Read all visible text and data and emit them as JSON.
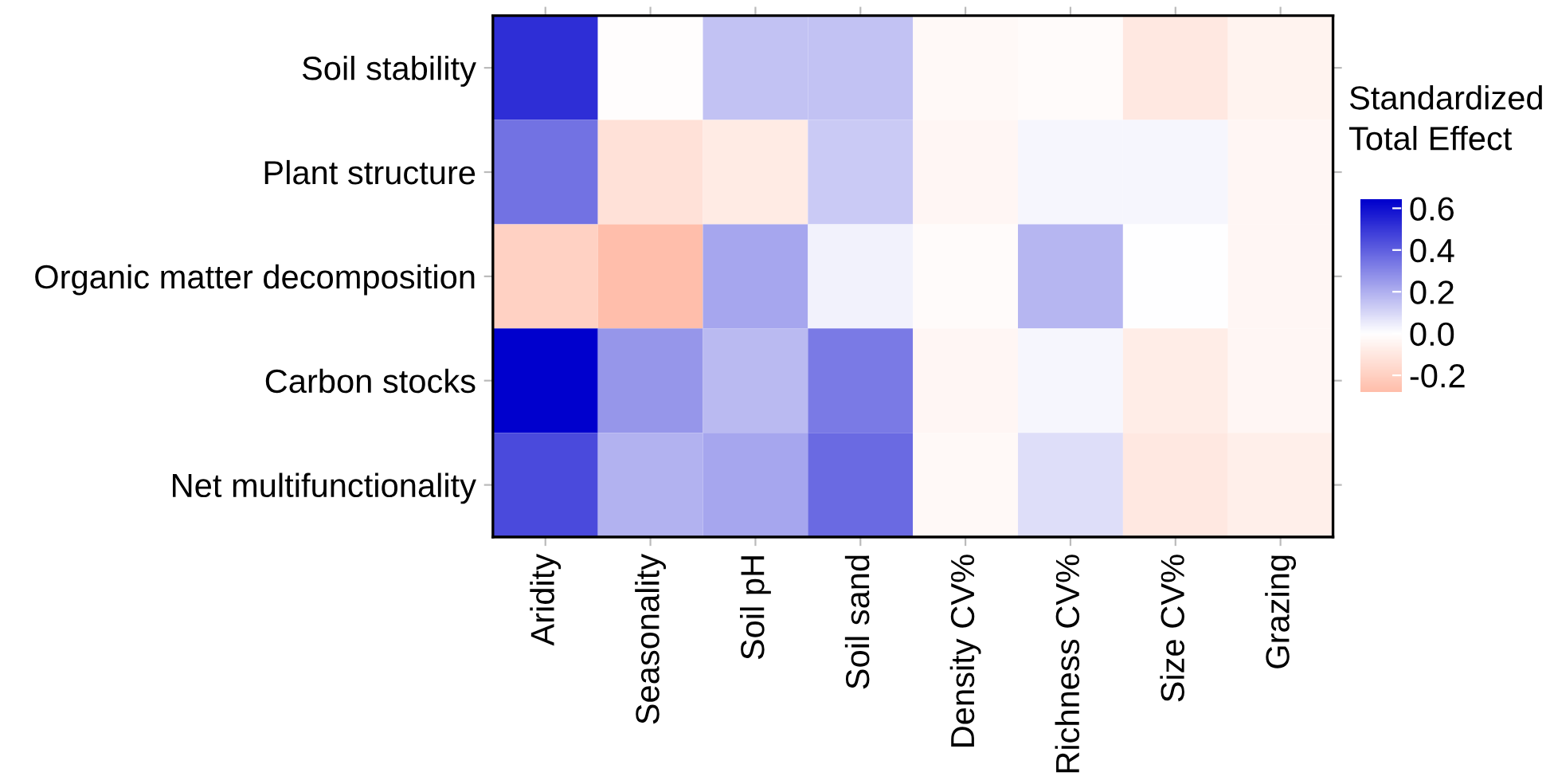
{
  "chart_data": {
    "type": "heatmap",
    "categories": [
      "Aridity",
      "Seasonality",
      "Soil pH",
      "Soil sand",
      "Density CV%",
      "Richness CV%",
      "Size CV%",
      "Grazing"
    ],
    "y_categories": [
      "Soil stability",
      "Plant structure",
      "Organic matter decomposition",
      "Carbon stocks",
      "Net multifunctionality"
    ],
    "cells": [
      [
        0.52,
        -0.01,
        0.15,
        0.15,
        -0.03,
        -0.02,
        -0.1,
        -0.05
      ],
      [
        0.35,
        -0.13,
        -0.09,
        0.13,
        -0.04,
        0.02,
        0.02,
        -0.04
      ],
      [
        -0.2,
        -0.28,
        0.22,
        0.03,
        -0.02,
        0.18,
        0.0,
        -0.04
      ],
      [
        0.64,
        0.26,
        0.17,
        0.33,
        -0.04,
        0.02,
        -0.08,
        -0.04
      ],
      [
        0.45,
        0.19,
        0.22,
        0.37,
        -0.03,
        0.08,
        -0.1,
        -0.07
      ]
    ],
    "clabel": "Standardized\nTotal Effect",
    "clim": [
      -0.28,
      0.64
    ],
    "cticks": [
      {
        "value": 0.6,
        "label": "0.6"
      },
      {
        "value": 0.4,
        "label": "0.4"
      },
      {
        "value": 0.2,
        "label": "0.2"
      },
      {
        "value": 0.0,
        "label": "0.0"
      },
      {
        "value": -0.2,
        "label": "-0.2"
      }
    ],
    "colors": [
      "#ff6a3d",
      "#ffffff",
      "#0000cd"
    ]
  }
}
